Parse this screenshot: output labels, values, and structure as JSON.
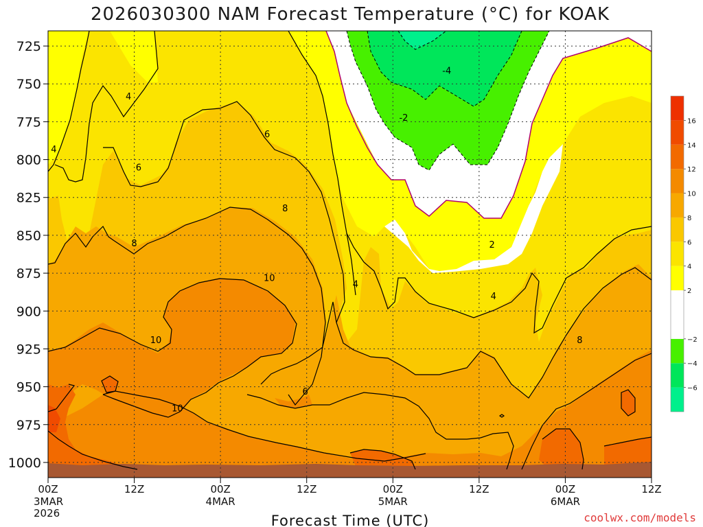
{
  "chart_data": {
    "type": "contour",
    "title": "2026030300 NAM Forecast Temperature (°C) for KOAK",
    "xlabel": "Forecast Time (UTC)",
    "ylabel": "",
    "credit": "coolwx.com/models",
    "x_range_hours": [
      0,
      84
    ],
    "y_range_hpa": [
      1010,
      715
    ],
    "y_ticks": [
      725,
      750,
      775,
      800,
      825,
      850,
      875,
      900,
      925,
      950,
      975,
      1000
    ],
    "x_ticks": [
      {
        "hour": 0,
        "label": "00Z",
        "date": "3MAR",
        "year": "2026"
      },
      {
        "hour": 12,
        "label": "12Z",
        "date": "",
        "year": ""
      },
      {
        "hour": 24,
        "label": "00Z",
        "date": "4MAR",
        "year": ""
      },
      {
        "hour": 36,
        "label": "12Z",
        "date": "",
        "year": ""
      },
      {
        "hour": 48,
        "label": "00Z",
        "date": "5MAR",
        "year": ""
      },
      {
        "hour": 60,
        "label": "12Z",
        "date": "",
        "year": ""
      },
      {
        "hour": 72,
        "label": "00Z",
        "date": "6MAR",
        "year": ""
      },
      {
        "hour": 84,
        "label": "12Z",
        "date": "",
        "year": ""
      }
    ],
    "colorbar": [
      {
        "min": -8,
        "max": -6,
        "color": "#00f08c"
      },
      {
        "min": -6,
        "max": -4,
        "color": "#00e65a"
      },
      {
        "min": -4,
        "max": -2,
        "color": "#47f000"
      },
      {
        "min": -2,
        "max": 2,
        "color": "#ffffff"
      },
      {
        "min": 2,
        "max": 4,
        "color": "#ffff00"
      },
      {
        "min": 4,
        "max": 6,
        "color": "#fbe400"
      },
      {
        "min": 6,
        "max": 8,
        "color": "#fac800"
      },
      {
        "min": 8,
        "max": 10,
        "color": "#f7a800"
      },
      {
        "min": 10,
        "max": 12,
        "color": "#f48a00"
      },
      {
        "min": 12,
        "max": 14,
        "color": "#f26a00"
      },
      {
        "min": 14,
        "max": 16,
        "color": "#f04b00"
      },
      {
        "min": 16,
        "max": 18,
        "color": "#ee3000"
      }
    ],
    "colorbar_labels": [
      "16",
      "14",
      "12",
      "10",
      "8",
      "6",
      "4",
      "2",
      "−2",
      "−4",
      "−6"
    ],
    "contour_labels": [
      {
        "text": "4",
        "hour": 11.2,
        "hpa": 758
      },
      {
        "text": "4",
        "hour": 0.8,
        "hpa": 793
      },
      {
        "text": "6",
        "hour": 12.6,
        "hpa": 805
      },
      {
        "text": "6",
        "hour": 30.5,
        "hpa": 783
      },
      {
        "text": "8",
        "hour": 12.0,
        "hpa": 855
      },
      {
        "text": "8",
        "hour": 33.0,
        "hpa": 832
      },
      {
        "text": "10",
        "hour": 30.8,
        "hpa": 878
      },
      {
        "text": "10",
        "hour": 15.0,
        "hpa": 919
      },
      {
        "text": "10",
        "hour": 18.0,
        "hpa": 964
      },
      {
        "text": "6",
        "hour": 35.8,
        "hpa": 953
      },
      {
        "text": "4",
        "hour": 42.8,
        "hpa": 882
      },
      {
        "text": "-4",
        "hour": 55.5,
        "hpa": 741
      },
      {
        "text": "-2",
        "hour": 49.5,
        "hpa": 772
      },
      {
        "text": "2",
        "hour": 61.8,
        "hpa": 856
      },
      {
        "text": "4",
        "hour": 62.0,
        "hpa": 890
      },
      {
        "text": "8",
        "hour": 74.0,
        "hpa": 919
      }
    ],
    "series": [
      {
        "name": "2°C contour (left)",
        "points": [
          [
            40,
            715
          ],
          [
            41,
            745
          ],
          [
            43,
            768
          ],
          [
            45,
            780
          ],
          [
            47,
            795
          ],
          [
            50,
            813
          ],
          [
            52,
            838
          ],
          [
            54,
            860
          ],
          [
            57,
            862
          ],
          [
            60,
            852
          ],
          [
            62,
            852
          ]
        ]
      },
      {
        "name": "2°C contour (right)",
        "points": [
          [
            62,
            852
          ],
          [
            64,
            825
          ],
          [
            67,
            790
          ],
          [
            69,
            765
          ],
          [
            72,
            748
          ],
          [
            75,
            733
          ],
          [
            78,
            730
          ],
          [
            81,
            727
          ],
          [
            84,
            724
          ]
        ]
      },
      {
        "name": "4°C contour",
        "points": [
          [
            5,
            715
          ],
          [
            6,
            760
          ],
          [
            8,
            795
          ],
          [
            11,
            810
          ],
          [
            14,
            807
          ],
          [
            17,
            790
          ],
          [
            20,
            770
          ],
          [
            24,
            758
          ],
          [
            27,
            768
          ],
          [
            30,
            780
          ],
          [
            33,
            793
          ],
          [
            36,
            800
          ],
          [
            39,
            815
          ],
          [
            41,
            850
          ],
          [
            42,
            880
          ],
          [
            44,
            852
          ],
          [
            47,
            866
          ],
          [
            49,
            880
          ],
          [
            52,
            880
          ],
          [
            56,
            886
          ],
          [
            60,
            892
          ],
          [
            63,
            884
          ],
          [
            66,
            871
          ],
          [
            67,
            902
          ],
          [
            69,
            862
          ],
          [
            71,
            834
          ],
          [
            74,
            805
          ],
          [
            78,
            802
          ],
          [
            81,
            810
          ],
          [
            84,
            790
          ]
        ]
      },
      {
        "name": "8°C contour",
        "points": [
          [
            0,
            872
          ],
          [
            2,
            870
          ],
          [
            5,
            850
          ],
          [
            8,
            838
          ],
          [
            12,
            853
          ],
          [
            16,
            843
          ],
          [
            20,
            838
          ],
          [
            24,
            826
          ],
          [
            27,
            822
          ],
          [
            30,
            820
          ],
          [
            34,
            832
          ],
          [
            37,
            850
          ],
          [
            39,
            875
          ],
          [
            40,
            900
          ],
          [
            42,
            930
          ],
          [
            45,
            925
          ],
          [
            48,
            912
          ],
          [
            51,
            920
          ],
          [
            54,
            929
          ],
          [
            58,
            932
          ],
          [
            62,
            933
          ],
          [
            65,
            920
          ],
          [
            67,
            935
          ],
          [
            70,
            940
          ],
          [
            73,
            918
          ],
          [
            76,
            880
          ],
          [
            79,
            855
          ],
          [
            82,
            842
          ],
          [
            84,
            838
          ]
        ]
      },
      {
        "name": "10°C contour",
        "points": [
          [
            0,
            917
          ],
          [
            3,
            915
          ],
          [
            6,
            903
          ],
          [
            9,
            893
          ],
          [
            13,
            912
          ],
          [
            16,
            918
          ],
          [
            19,
            905
          ],
          [
            22,
            885
          ],
          [
            25,
            875
          ],
          [
            29,
            873
          ],
          [
            32,
            878
          ],
          [
            35,
            892
          ],
          [
            36,
            905
          ],
          [
            34,
            917
          ],
          [
            31,
            930
          ],
          [
            28,
            938
          ],
          [
            25,
            950
          ],
          [
            22,
            968
          ],
          [
            18,
            972
          ],
          [
            14,
            970
          ],
          [
            11,
            955
          ],
          [
            12,
            947
          ],
          [
            9,
            948
          ],
          [
            4,
            960
          ],
          [
            0,
            967
          ]
        ]
      },
      {
        "name": "12°C contour",
        "points": [
          [
            0,
            958
          ],
          [
            2,
            952
          ],
          [
            4,
            948
          ],
          [
            5,
            962
          ],
          [
            4,
            985
          ],
          [
            6,
            1000
          ],
          [
            10,
            1004
          ],
          [
            12,
            1008
          ]
        ]
      }
    ]
  }
}
